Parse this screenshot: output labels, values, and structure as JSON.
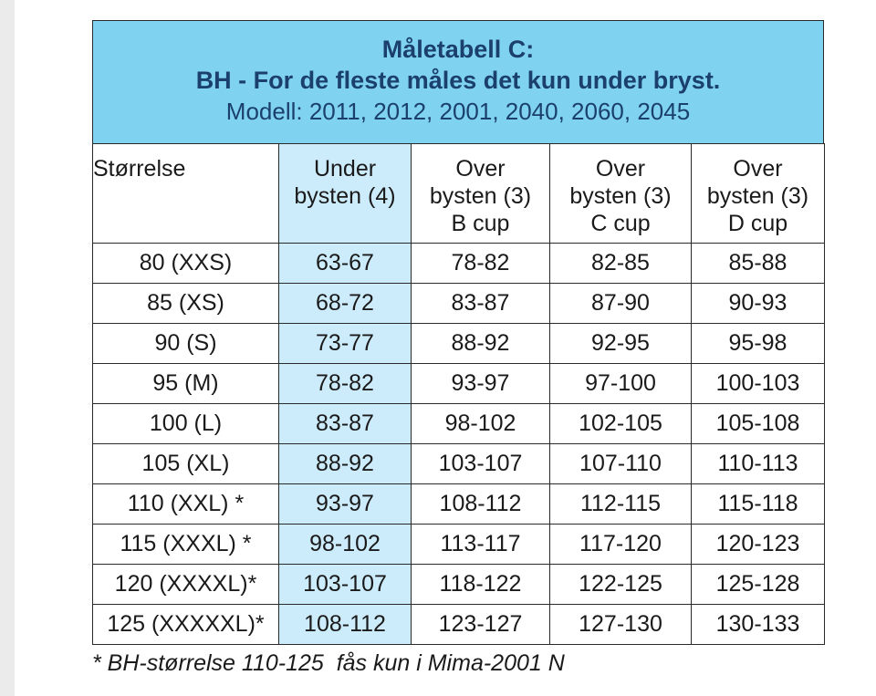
{
  "title": {
    "line1": "Måletabell C:",
    "line2": "BH - For de fleste måles det kun under bryst.",
    "line3": "Modell: 2011, 2012, 2001, 2040, 2060, 2045"
  },
  "colors": {
    "title_background": "#7fd3f1",
    "title_text": "#1b3f6e",
    "highlight_column": "#cdecfb"
  },
  "table": {
    "headers": [
      {
        "lines": [
          "Størrelse"
        ]
      },
      {
        "lines": [
          "Under",
          "bysten (4)"
        ]
      },
      {
        "lines": [
          "Over",
          "bysten (3)",
          "B cup"
        ]
      },
      {
        "lines": [
          "Over",
          "bysten (3)",
          "C cup"
        ]
      },
      {
        "lines": [
          "Over",
          "bysten (3)",
          "D cup"
        ]
      }
    ],
    "rows": [
      [
        "80 (XXS)",
        "63-67",
        "78-82",
        "82-85",
        "85-88"
      ],
      [
        "85 (XS)",
        "68-72",
        "83-87",
        "87-90",
        "90-93"
      ],
      [
        "90 (S)",
        "73-77",
        "88-92",
        "92-95",
        "95-98"
      ],
      [
        "95 (M)",
        "78-82",
        "93-97",
        "97-100",
        "100-103"
      ],
      [
        "100 (L)",
        "83-87",
        "98-102",
        "102-105",
        "105-108"
      ],
      [
        "105 (XL)",
        "88-92",
        "103-107",
        "107-110",
        "110-113"
      ],
      [
        "110 (XXL) *",
        "93-97",
        "108-112",
        "112-115",
        "115-118"
      ],
      [
        "115 (XXXL) *",
        "98-102",
        "113-117",
        "117-120",
        "120-123"
      ],
      [
        "120 (XXXXL)*",
        "103-107",
        "118-122",
        "122-125",
        "125-128"
      ],
      [
        "125 (XXXXXL)*",
        "108-112",
        "123-127",
        "127-130",
        "130-133"
      ]
    ]
  },
  "footnote": "* BH-størrelse 110-125  fås kun i Mima-2001 N"
}
